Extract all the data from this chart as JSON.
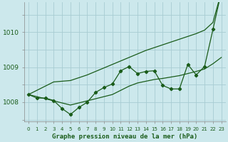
{
  "title": "Graphe pression niveau de la mer (hPa)",
  "bg_color": "#cce8ec",
  "grid_color": "#a8ccd2",
  "line_color": "#1a5c1a",
  "x_values": [
    0,
    1,
    2,
    3,
    4,
    5,
    6,
    7,
    8,
    9,
    10,
    11,
    12,
    13,
    14,
    15,
    16,
    17,
    18,
    19,
    20,
    21,
    22,
    23
  ],
  "ylim": [
    1007.45,
    1010.85
  ],
  "yticks": [
    1008,
    1009,
    1010
  ],
  "smooth_top": [
    1008.22,
    1008.34,
    1008.46,
    1008.58,
    1008.6,
    1008.62,
    1008.7,
    1008.78,
    1008.88,
    1008.98,
    1009.08,
    1009.18,
    1009.28,
    1009.38,
    1009.48,
    1009.56,
    1009.64,
    1009.72,
    1009.8,
    1009.88,
    1009.96,
    1010.06,
    1010.28,
    1011.15
  ],
  "smooth_bot": [
    1008.22,
    1008.16,
    1008.1,
    1008.04,
    1007.98,
    1007.92,
    1007.98,
    1008.04,
    1008.1,
    1008.16,
    1008.22,
    1008.34,
    1008.46,
    1008.55,
    1008.6,
    1008.65,
    1008.68,
    1008.72,
    1008.76,
    1008.82,
    1008.88,
    1008.95,
    1009.1,
    1009.28
  ],
  "zigzag": [
    1008.22,
    1008.12,
    1008.12,
    1008.05,
    1007.82,
    1007.65,
    1007.85,
    1008.0,
    1008.28,
    1008.42,
    1008.52,
    1008.9,
    1009.02,
    1008.82,
    1008.88,
    1008.9,
    1008.48,
    1008.38,
    1008.38,
    1009.08,
    1008.78,
    1009.02,
    1010.08,
    1011.15
  ]
}
